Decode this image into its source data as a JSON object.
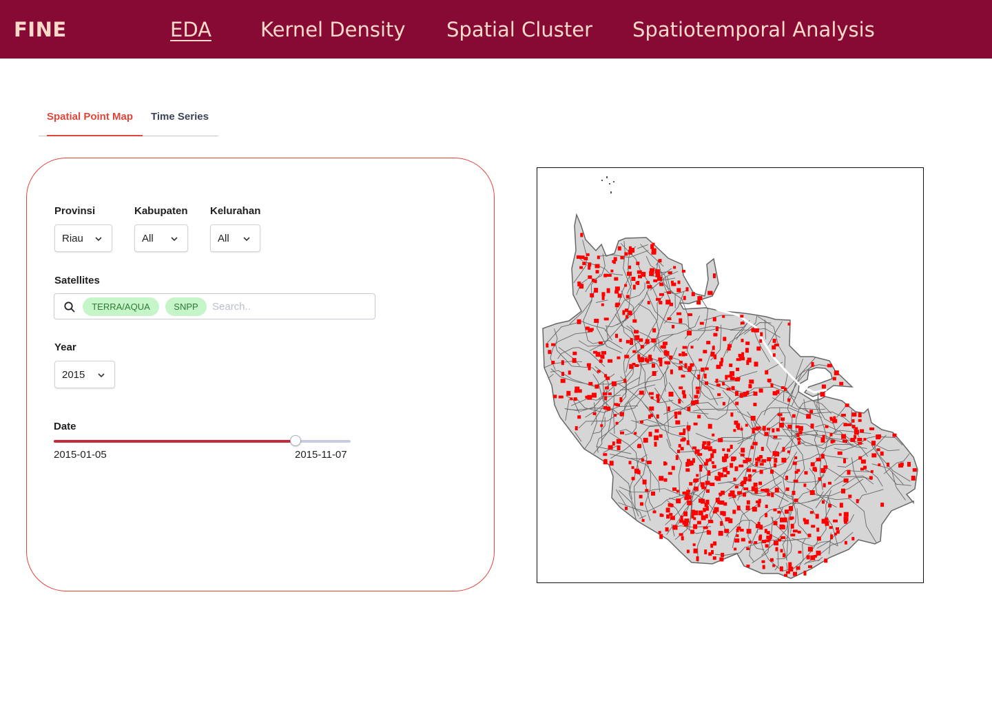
{
  "header": {
    "brand": "FINE",
    "nav": [
      {
        "label": "EDA",
        "active": true
      },
      {
        "label": "Kernel Density",
        "active": false
      },
      {
        "label": "Spatial Cluster",
        "active": false
      },
      {
        "label": "Spatiotemporal Analysis",
        "active": false
      }
    ]
  },
  "tabs": [
    {
      "label": "Spatial Point Map",
      "active": true
    },
    {
      "label": "Time Series",
      "active": false
    }
  ],
  "filters": {
    "provinsi": {
      "label": "Provinsi",
      "value": "Riau"
    },
    "kabupaten": {
      "label": "Kabupaten",
      "value": "All"
    },
    "kelurahan": {
      "label": "Kelurahan",
      "value": "All"
    },
    "satellites": {
      "label": "Satellites",
      "selected": [
        "TERRA/AQUA",
        "SNPP"
      ],
      "placeholder": "Search.."
    },
    "year": {
      "label": "Year",
      "value": "2015"
    },
    "date": {
      "label": "Date",
      "start": "2015-01-05",
      "end": "2015-11-07",
      "selected_fraction": 0.815
    }
  },
  "map": {
    "region_fill": "#d6d6d6",
    "border_color": "#666666",
    "hotspot_color": "#ff0000"
  },
  "colors": {
    "header_bg": "#870a35",
    "header_text": "#fcd9c9",
    "accent": "#e0453a",
    "slider_fill": "#c8283b",
    "chip_bg": "#c6f5c9"
  }
}
